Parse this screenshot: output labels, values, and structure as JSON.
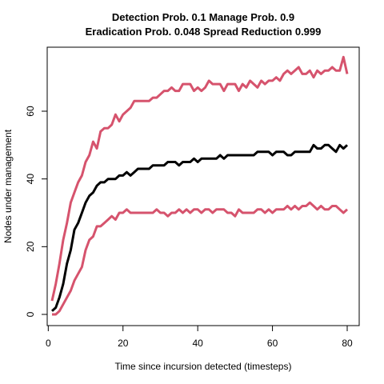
{
  "chart_data": {
    "type": "line",
    "title": [
      "Detection Prob. 0.1 Manage Prob. 0.9",
      "Eradication Prob. 0.048 Spread Reduction 0.999"
    ],
    "xlabel": "Time since incursion detected (timesteps)",
    "ylabel": "Nodes under management",
    "xlim": [
      1,
      80
    ],
    "ylim": [
      0,
      75
    ],
    "xticks": [
      0,
      20,
      40,
      60,
      80
    ],
    "yticks": [
      0,
      20,
      40,
      60
    ],
    "grid": false,
    "legend": "none",
    "x": [
      1,
      2,
      3,
      4,
      5,
      6,
      7,
      8,
      9,
      10,
      11,
      12,
      13,
      14,
      15,
      16,
      17,
      18,
      19,
      20,
      21,
      22,
      23,
      24,
      25,
      26,
      27,
      28,
      29,
      30,
      31,
      32,
      33,
      34,
      35,
      36,
      37,
      38,
      39,
      40,
      41,
      42,
      43,
      44,
      45,
      46,
      47,
      48,
      49,
      50,
      51,
      52,
      53,
      54,
      55,
      56,
      57,
      58,
      59,
      60,
      61,
      62,
      63,
      64,
      65,
      66,
      67,
      68,
      69,
      70,
      71,
      72,
      73,
      74,
      75,
      76,
      77,
      78,
      79,
      80
    ],
    "series": [
      {
        "color": "#d6536d",
        "values": [
          4,
          9,
          15,
          22,
          27,
          33,
          36,
          39,
          41,
          45,
          47,
          51,
          49,
          54,
          55,
          55,
          56,
          59,
          57,
          59,
          60,
          61,
          63,
          63,
          63,
          63,
          63,
          64,
          64,
          65,
          66,
          66,
          67,
          66,
          66,
          68,
          68,
          68,
          66,
          67,
          66,
          67,
          69,
          68,
          68,
          68,
          66,
          68,
          68,
          68,
          66,
          68,
          67,
          69,
          68,
          67,
          69,
          68,
          69,
          69,
          70,
          69,
          71,
          72,
          71,
          72,
          73,
          71,
          71,
          72,
          70,
          72,
          71,
          72,
          72,
          73,
          72,
          72,
          76,
          71
        ]
      },
      {
        "color": "#000000",
        "values": [
          1,
          2,
          5,
          9,
          15,
          19,
          25,
          27,
          30,
          33,
          35,
          36,
          38,
          39,
          39,
          40,
          40,
          40,
          41,
          41,
          42,
          41,
          42,
          43,
          43,
          43,
          43,
          44,
          44,
          44,
          44,
          45,
          45,
          45,
          44,
          45,
          45,
          45,
          46,
          45,
          46,
          46,
          46,
          46,
          46,
          47,
          46,
          47,
          47,
          47,
          47,
          47,
          47,
          47,
          47,
          48,
          48,
          48,
          48,
          47,
          48,
          48,
          48,
          47,
          47,
          48,
          48,
          48,
          48,
          48,
          50,
          49,
          49,
          50,
          50,
          49,
          48,
          50,
          49,
          50
        ]
      },
      {
        "color": "#d6536d",
        "values": [
          0,
          0,
          1,
          3,
          5,
          7,
          10,
          12,
          14,
          19,
          22,
          23,
          26,
          26,
          27,
          28,
          29,
          28,
          30,
          30,
          31,
          30,
          30,
          30,
          30,
          30,
          30,
          30,
          31,
          30,
          30,
          29,
          30,
          30,
          31,
          30,
          31,
          30,
          31,
          31,
          30,
          31,
          31,
          30,
          31,
          31,
          31,
          30,
          30,
          29,
          31,
          30,
          30,
          30,
          30,
          31,
          31,
          30,
          31,
          30,
          31,
          31,
          31,
          32,
          31,
          32,
          31,
          32,
          32,
          33,
          32,
          31,
          32,
          31,
          31,
          32,
          32,
          31,
          30,
          31
        ]
      }
    ]
  }
}
